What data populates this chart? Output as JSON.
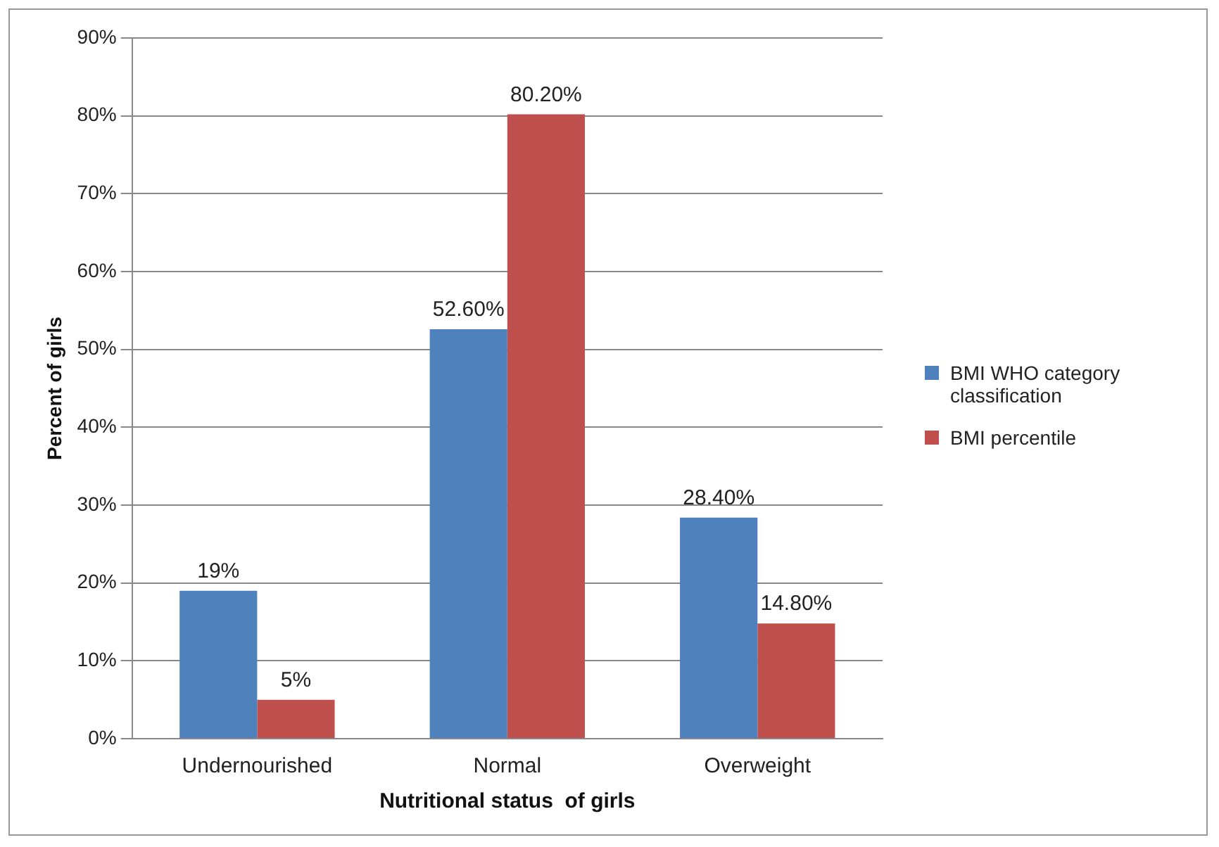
{
  "chart_data": {
    "type": "bar",
    "xlabel": "Nutritional status  of girls",
    "ylabel": "Percent of girls",
    "categories": [
      "Undernourished",
      "Normal",
      "Overweight"
    ],
    "series": [
      {
        "name": "BMI WHO category classification",
        "color": "#4f81bd",
        "values": [
          19,
          52.6,
          28.4
        ],
        "value_labels": [
          "19%",
          "52.60%",
          "28.40%"
        ]
      },
      {
        "name": "BMI percentile",
        "color": "#c0504d",
        "values": [
          5,
          80.2,
          14.8
        ],
        "value_labels": [
          "5%",
          "80.20%",
          "14.80%"
        ]
      }
    ],
    "ylim": [
      0,
      90
    ],
    "yticks": [
      {
        "value": 0,
        "label": "0%"
      },
      {
        "value": 10,
        "label": "10%"
      },
      {
        "value": 20,
        "label": "20%"
      },
      {
        "value": 30,
        "label": "30%"
      },
      {
        "value": 40,
        "label": "40%"
      },
      {
        "value": 50,
        "label": "50%"
      },
      {
        "value": 60,
        "label": "60%"
      },
      {
        "value": 70,
        "label": "70%"
      },
      {
        "value": 80,
        "label": "80%"
      },
      {
        "value": 90,
        "label": "90%"
      }
    ],
    "grid": "y",
    "legend": "right"
  }
}
